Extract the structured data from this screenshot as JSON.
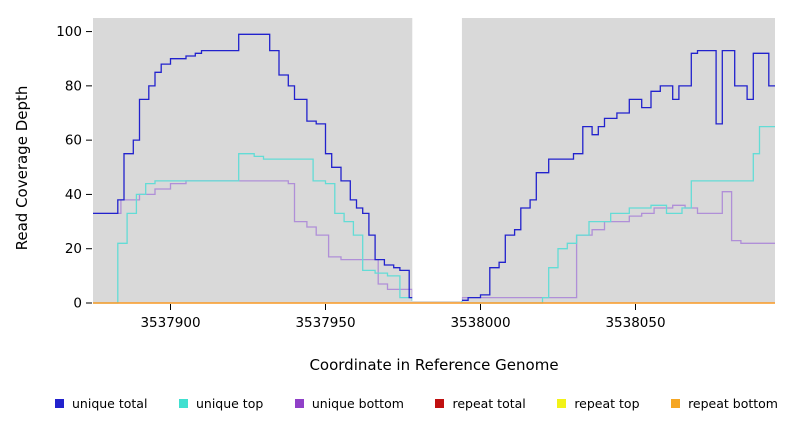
{
  "chart_data": {
    "type": "line",
    "step": true,
    "title": "",
    "xlabel": "Coordinate in Reference Genome",
    "ylabel": "Read Coverage Depth",
    "xlim": [
      3537875,
      3538095
    ],
    "ylim": [
      0,
      105
    ],
    "xticks": [
      3537900,
      3537950,
      3538000,
      3538050
    ],
    "yticks": [
      0,
      20,
      40,
      60,
      80,
      100
    ],
    "plot_bg": "#d9d9d9",
    "grid": false,
    "legend_position": "bottom",
    "gap_region": {
      "from": 3537978,
      "to": 3537994,
      "color": "#ffffff"
    },
    "series": [
      {
        "name": "unique bottom",
        "color": "#b08fd8",
        "points": [
          [
            3537875,
            33
          ],
          [
            3537884,
            38
          ],
          [
            3537890,
            40
          ],
          [
            3537895,
            42
          ],
          [
            3537900,
            44
          ],
          [
            3537905,
            45
          ],
          [
            3537936,
            45
          ],
          [
            3537938,
            44
          ],
          [
            3537940,
            30
          ],
          [
            3537944,
            28
          ],
          [
            3537947,
            25
          ],
          [
            3537951,
            17
          ],
          [
            3537955,
            16
          ],
          [
            3537965,
            16
          ],
          [
            3537967,
            7
          ],
          [
            3537970,
            5
          ],
          [
            3537976,
            5
          ],
          [
            3537978,
            1
          ],
          [
            3537994,
            2
          ],
          [
            3538028,
            2
          ],
          [
            3538031,
            25
          ],
          [
            3538036,
            27
          ],
          [
            3538040,
            30
          ],
          [
            3538046,
            30
          ],
          [
            3538048,
            32
          ],
          [
            3538052,
            33
          ],
          [
            3538056,
            35
          ],
          [
            3538062,
            36
          ],
          [
            3538066,
            35
          ],
          [
            3538070,
            33
          ],
          [
            3538076,
            33
          ],
          [
            3538078,
            41
          ],
          [
            3538081,
            23
          ],
          [
            3538084,
            22
          ],
          [
            3538095,
            22
          ]
        ]
      },
      {
        "name": "unique top",
        "color": "#63dcd6",
        "points": [
          [
            3537875,
            0
          ],
          [
            3537883,
            22
          ],
          [
            3537886,
            33
          ],
          [
            3537889,
            40
          ],
          [
            3537892,
            44
          ],
          [
            3537895,
            45
          ],
          [
            3537922,
            55
          ],
          [
            3537927,
            54
          ],
          [
            3537930,
            53
          ],
          [
            3537944,
            53
          ],
          [
            3537946,
            45
          ],
          [
            3537950,
            44
          ],
          [
            3537953,
            33
          ],
          [
            3537956,
            30
          ],
          [
            3537959,
            25
          ],
          [
            3537962,
            12
          ],
          [
            3537966,
            11
          ],
          [
            3537970,
            10
          ],
          [
            3537974,
            2
          ],
          [
            3537978,
            1
          ],
          [
            3537994,
            0
          ],
          [
            3538020,
            2
          ],
          [
            3538022,
            13
          ],
          [
            3538025,
            20
          ],
          [
            3538028,
            22
          ],
          [
            3538031,
            25
          ],
          [
            3538035,
            30
          ],
          [
            3538042,
            33
          ],
          [
            3538048,
            35
          ],
          [
            3538055,
            36
          ],
          [
            3538060,
            33
          ],
          [
            3538065,
            35
          ],
          [
            3538068,
            45
          ],
          [
            3538086,
            45
          ],
          [
            3538088,
            55
          ],
          [
            3538090,
            65
          ],
          [
            3538095,
            65
          ]
        ]
      },
      {
        "name": "unique total",
        "color": "#2222cd",
        "points": [
          [
            3537875,
            33
          ],
          [
            3537883,
            38
          ],
          [
            3537885,
            55
          ],
          [
            3537888,
            60
          ],
          [
            3537890,
            75
          ],
          [
            3537893,
            80
          ],
          [
            3537895,
            85
          ],
          [
            3537897,
            88
          ],
          [
            3537900,
            90
          ],
          [
            3537905,
            91
          ],
          [
            3537908,
            92
          ],
          [
            3537910,
            93
          ],
          [
            3537922,
            99
          ],
          [
            3537932,
            93
          ],
          [
            3537935,
            84
          ],
          [
            3537938,
            80
          ],
          [
            3537940,
            75
          ],
          [
            3537944,
            67
          ],
          [
            3537947,
            66
          ],
          [
            3537950,
            55
          ],
          [
            3537952,
            50
          ],
          [
            3537955,
            45
          ],
          [
            3537958,
            38
          ],
          [
            3537960,
            35
          ],
          [
            3537962,
            33
          ],
          [
            3537964,
            25
          ],
          [
            3537966,
            16
          ],
          [
            3537969,
            14
          ],
          [
            3537972,
            13
          ],
          [
            3537974,
            12
          ],
          [
            3537977,
            2
          ],
          [
            3537985,
            1
          ],
          [
            3537996,
            2
          ],
          [
            3538000,
            3
          ],
          [
            3538003,
            13
          ],
          [
            3538006,
            15
          ],
          [
            3538008,
            25
          ],
          [
            3538011,
            27
          ],
          [
            3538013,
            35
          ],
          [
            3538016,
            38
          ],
          [
            3538018,
            48
          ],
          [
            3538022,
            53
          ],
          [
            3538030,
            55
          ],
          [
            3538033,
            65
          ],
          [
            3538036,
            62
          ],
          [
            3538038,
            65
          ],
          [
            3538040,
            68
          ],
          [
            3538044,
            70
          ],
          [
            3538048,
            75
          ],
          [
            3538052,
            72
          ],
          [
            3538055,
            78
          ],
          [
            3538058,
            80
          ],
          [
            3538062,
            75
          ],
          [
            3538064,
            80
          ],
          [
            3538068,
            92
          ],
          [
            3538070,
            93
          ],
          [
            3538076,
            66
          ],
          [
            3538078,
            93
          ],
          [
            3538082,
            80
          ],
          [
            3538086,
            75
          ],
          [
            3538088,
            92
          ],
          [
            3538093,
            80
          ],
          [
            3538095,
            80
          ]
        ]
      },
      {
        "name": "repeat total",
        "color": "#cd2222",
        "points": [
          [
            3537875,
            0
          ],
          [
            3538095,
            0
          ]
        ]
      },
      {
        "name": "repeat top",
        "color": "#efef30",
        "points": [
          [
            3537875,
            0
          ],
          [
            3538095,
            0
          ]
        ]
      },
      {
        "name": "repeat bottom",
        "color": "#ffa030",
        "points": [
          [
            3537875,
            0
          ],
          [
            3538095,
            0
          ]
        ]
      }
    ]
  },
  "legend": {
    "items": [
      {
        "label": "unique total",
        "color": "#2222cd"
      },
      {
        "label": "unique top",
        "color": "#40e0d0"
      },
      {
        "label": "unique bottom",
        "color": "#9040c8"
      },
      {
        "label": "repeat total",
        "color": "#c01010"
      },
      {
        "label": "repeat top",
        "color": "#f2f218"
      },
      {
        "label": "repeat bottom",
        "color": "#f5a623"
      }
    ]
  }
}
